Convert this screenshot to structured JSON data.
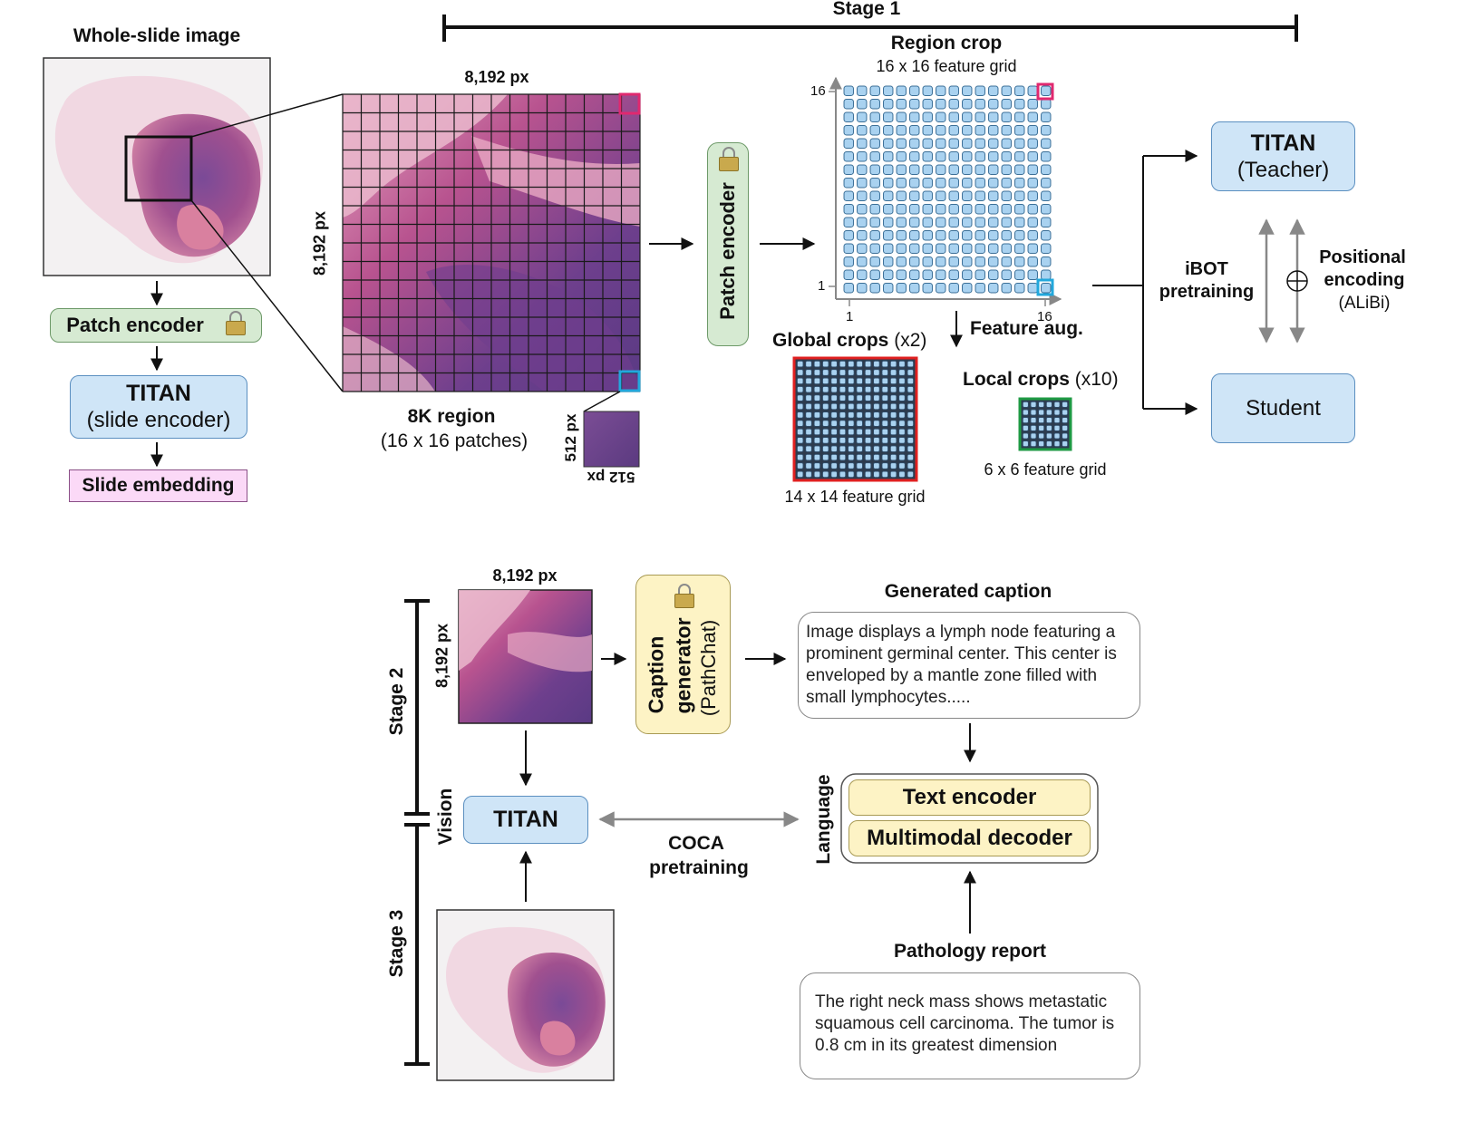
{
  "stage1": {
    "label": "Stage 1",
    "wsi_title": "Whole-slide image",
    "patch_encoder": "Patch encoder",
    "titan_title": "TITAN",
    "titan_sub": "(slide encoder)",
    "slide_embedding": "Slide embedding",
    "region_size_top": "8,192 px",
    "region_size_side": "8,192 px",
    "region_title": "8K region",
    "region_sub": "(16 x 16 patches)",
    "patch_px_side": "512 px",
    "patch_px_bottom": "512 px",
    "patch_encoder_vertical": "Patch encoder",
    "region_crop_title": "Region crop",
    "region_crop_sub": "16 x 16 feature grid",
    "axis_y_top": "16",
    "axis_y_bottom": "1",
    "axis_x_left": "1",
    "axis_x_right": "16",
    "feature_aug": "Feature aug.",
    "global_crops_bold": "Global crops",
    "global_crops_count": "(x2)",
    "global_grid": "14 x 14 feature grid",
    "local_crops_bold": "Local crops",
    "local_crops_count": "(x10)",
    "local_grid": "6 x 6 feature grid",
    "teacher_title": "TITAN",
    "teacher_sub": "(Teacher)",
    "student": "Student",
    "ibot_line1": "iBOT",
    "ibot_line2": "pretraining",
    "pos_line1": "Positional",
    "pos_line2": "encoding",
    "pos_line3": "(ALiBi)"
  },
  "stage23": {
    "stage2": "Stage 2",
    "stage3": "Stage 3",
    "vision": "Vision",
    "language": "Language",
    "region_size_top": "8,192 px",
    "region_size_side": "8,192 px",
    "caption_gen_line1": "Caption",
    "caption_gen_line2": "generator",
    "caption_gen_line3": "(PathChat)",
    "generated_caption_title": "Generated caption",
    "generated_caption_text": "Image displays a lymph node featuring a prominent germinal center. This center is enveloped by a mantle zone filled with small lymphocytes.....",
    "titan": "TITAN",
    "coca_line1": "COCA",
    "coca_line2": "pretraining",
    "text_encoder": "Text encoder",
    "multimodal_decoder": "Multimodal decoder",
    "pathology_report_title": "Pathology report",
    "pathology_report_text": "The right neck mass shows metastatic squamous cell carcinoma. The tumor is 0.8 cm in its greatest dimension"
  },
  "colors": {
    "titan_blue": "#cfe5f7",
    "patch_green": "#d6ead2",
    "caption_yellow": "#fdf3c5",
    "embedding_pink": "#fbd9f7",
    "tissue_purple": "#6a3f86",
    "tissue_pink": "#d76a9c",
    "feature_cell": "#a9d2f0",
    "highlight_magenta": "#e0286f",
    "highlight_cyan": "#22a8dc",
    "global_crop_red": "#e02020",
    "local_crop_green": "#1f9a44"
  }
}
